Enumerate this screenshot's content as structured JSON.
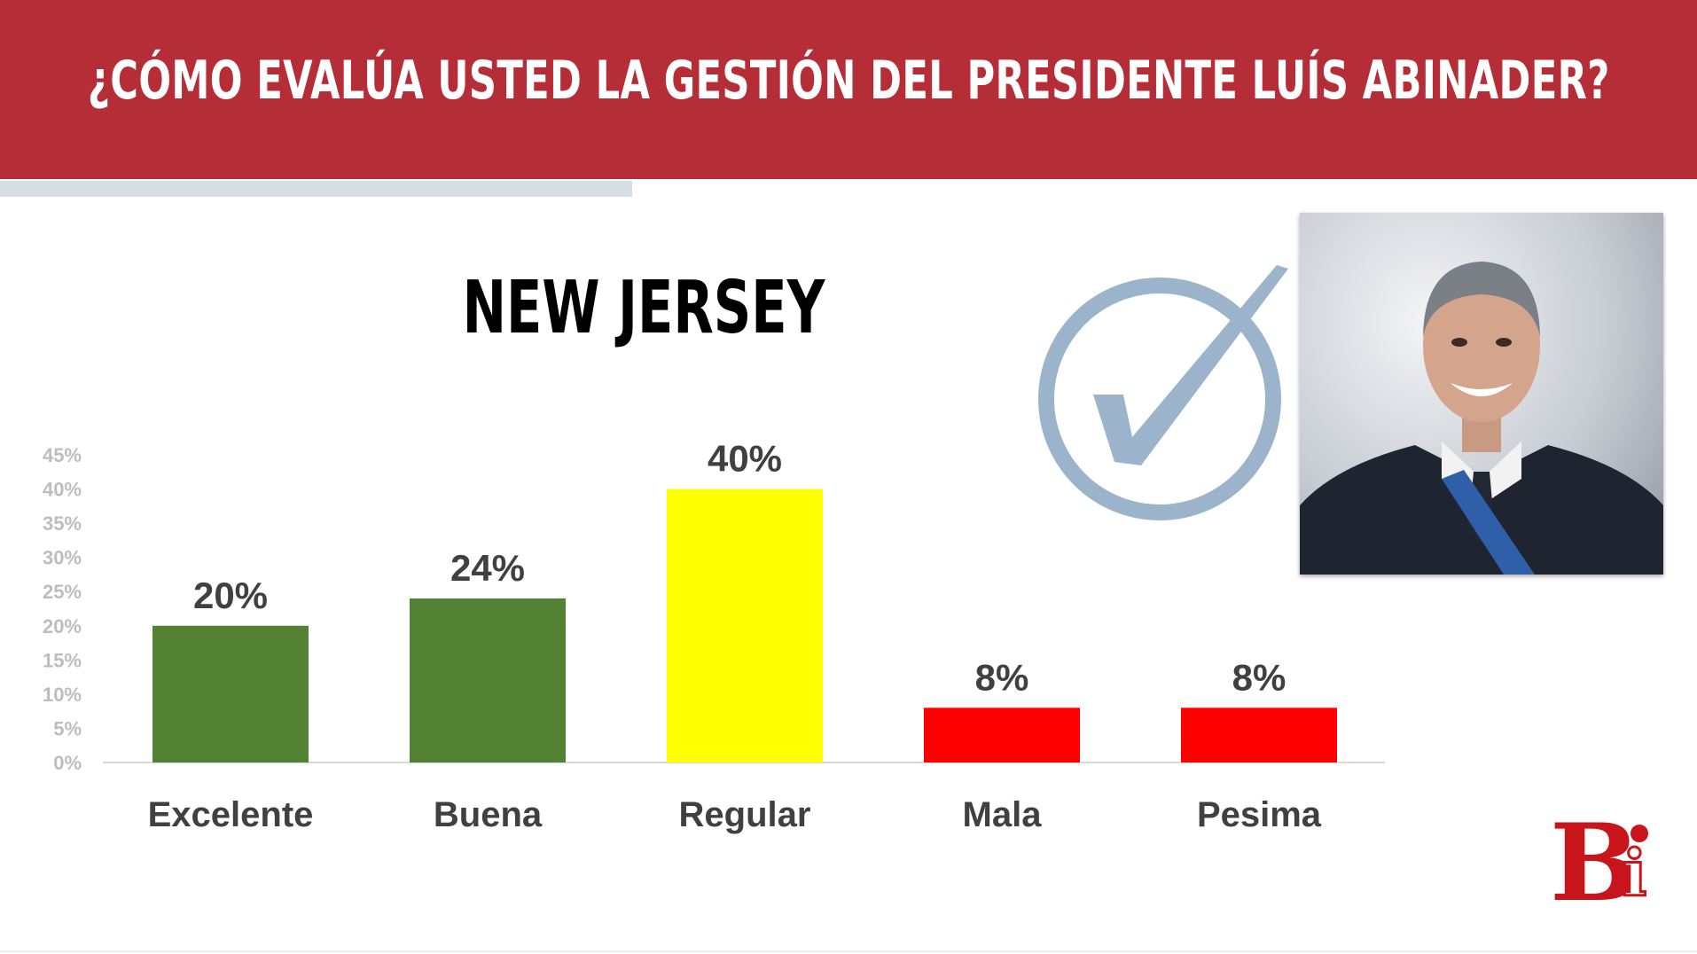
{
  "header": {
    "title": "¿CÓMO EVALÚA USTED LA GESTIÓN DEL PRESIDENTE LUÍS ABINADER?"
  },
  "colors": {
    "header_bg": "#b52d36",
    "positive": "#548235",
    "neutral": "#ffff00",
    "negative": "#ff0000",
    "check": "#9cb3cc"
  },
  "icons": {
    "check": "check-circle-icon",
    "logo": "bi-logo"
  },
  "chart_data": {
    "type": "bar",
    "title": "NEW JERSEY",
    "categories": [
      "Excelente",
      "Buena",
      "Regular",
      "Mala",
      "Pesima"
    ],
    "values": [
      20,
      24,
      40,
      8,
      8
    ],
    "data_labels": [
      "20%",
      "24%",
      "40%",
      "8%",
      "8%"
    ],
    "bar_colors": [
      "#548235",
      "#548235",
      "#ffff00",
      "#ff0000",
      "#ff0000"
    ],
    "y_ticks": [
      0,
      5,
      10,
      15,
      20,
      25,
      30,
      35,
      40,
      45
    ],
    "y_tick_labels": [
      "0%",
      "5%",
      "10%",
      "15%",
      "20%",
      "25%",
      "30%",
      "35%",
      "40%",
      "45%"
    ],
    "ylim": [
      0,
      45
    ],
    "grid": false,
    "legend": "none",
    "xlabel": "",
    "ylabel": ""
  }
}
